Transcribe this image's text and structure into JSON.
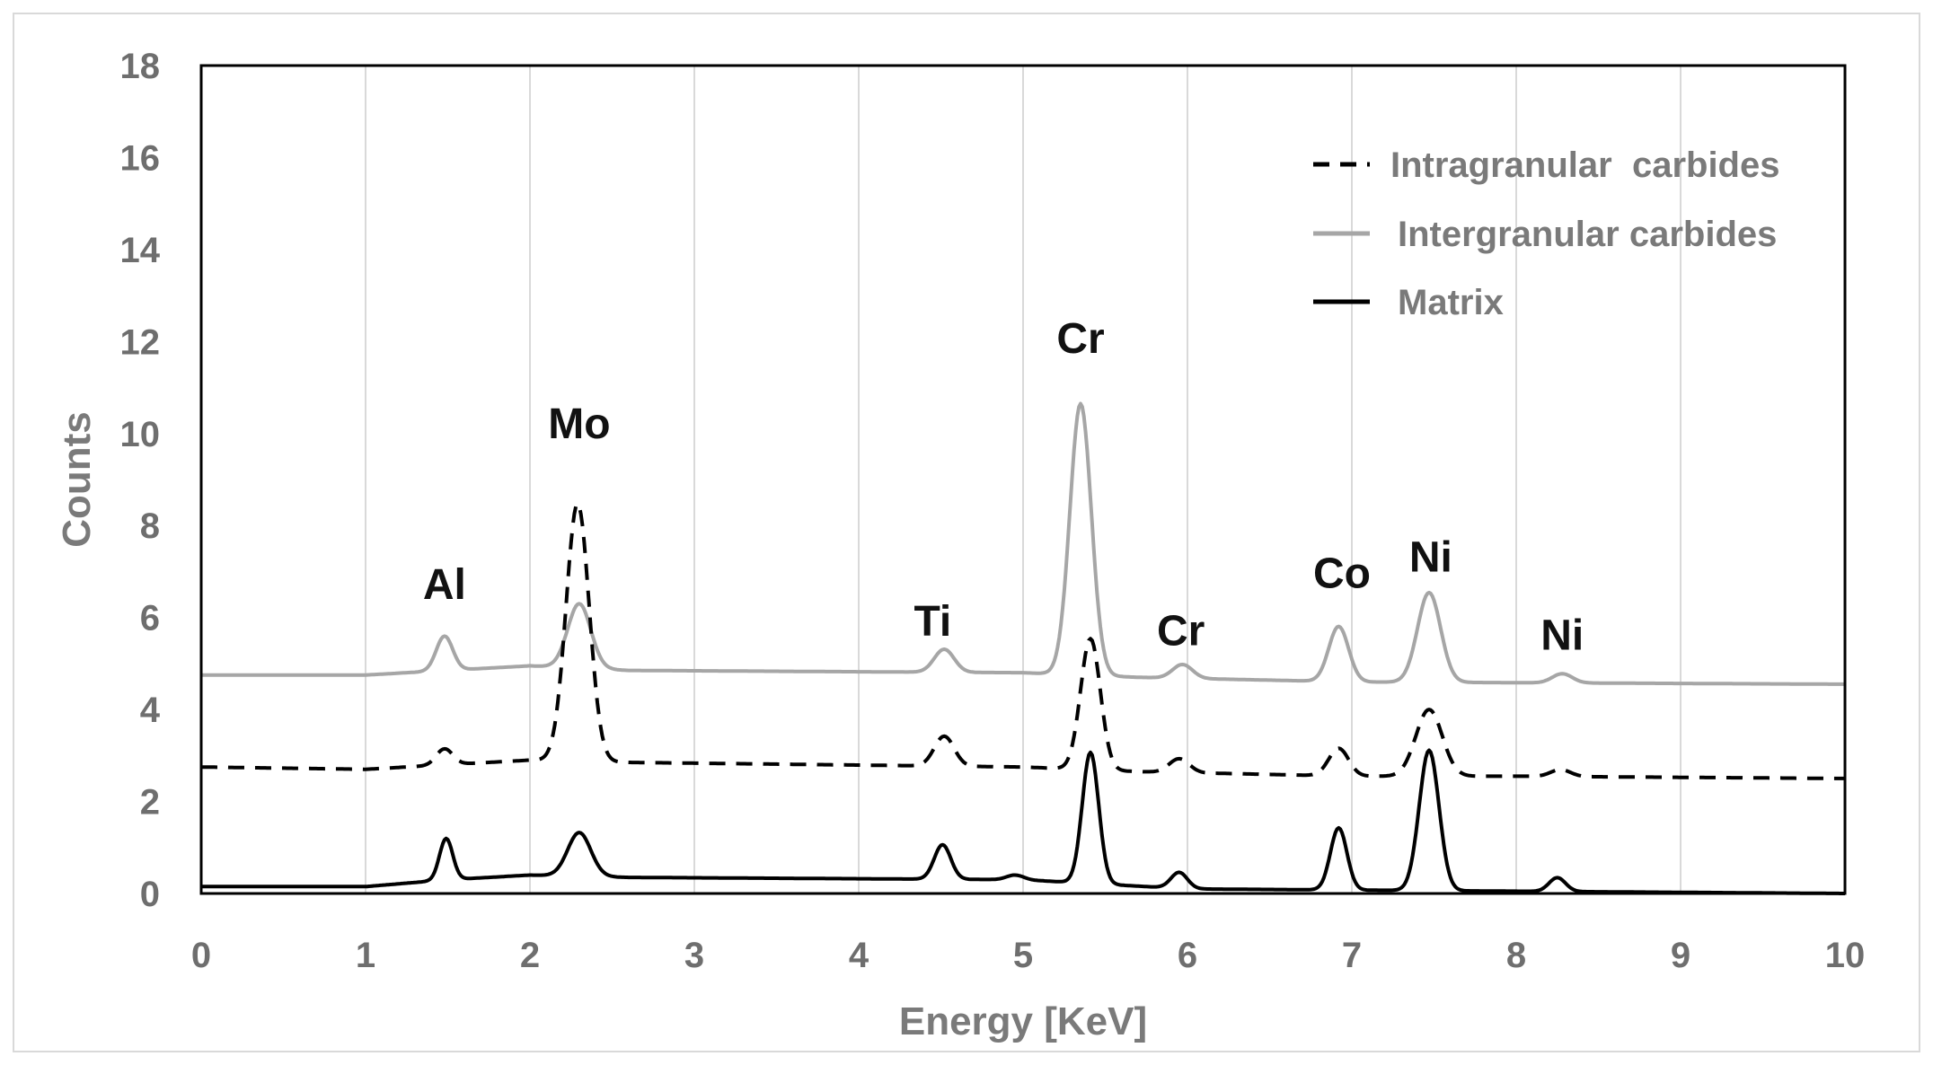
{
  "chart_data": {
    "type": "line",
    "title": "",
    "xlabel": "Energy [KeV]",
    "ylabel": "Counts",
    "xlim": [
      0,
      10
    ],
    "ylim": [
      0,
      18
    ],
    "xticks": [
      "0",
      "1",
      "2",
      "3",
      "4",
      "5",
      "6",
      "7",
      "8",
      "9",
      "10"
    ],
    "yticks": [
      "0",
      "2",
      "4",
      "6",
      "8",
      "10",
      "12",
      "14",
      "16",
      "18"
    ],
    "grid": "vertical",
    "legend_position": "top-right",
    "series": [
      {
        "name": "Intragranular  carbides",
        "style": "dashed",
        "color": "#000000",
        "baseline": [
          [
            0,
            2.75
          ],
          [
            1.0,
            2.7
          ],
          [
            2.0,
            2.9
          ],
          [
            2.6,
            2.85
          ],
          [
            5.0,
            2.75
          ],
          [
            5.7,
            2.65
          ],
          [
            7.0,
            2.55
          ],
          [
            8.0,
            2.55
          ],
          [
            10.0,
            2.5
          ]
        ],
        "peaks": [
          [
            1.48,
            0.35,
            0.05
          ],
          [
            2.29,
            5.6,
            0.07
          ],
          [
            4.52,
            0.65,
            0.06
          ],
          [
            5.41,
            2.85,
            0.06
          ],
          [
            5.95,
            0.3,
            0.06
          ],
          [
            6.92,
            0.6,
            0.06
          ],
          [
            7.47,
            1.45,
            0.08
          ],
          [
            8.27,
            0.15,
            0.06
          ]
        ]
      },
      {
        "name": "Intergranular carbides",
        "style": "solid",
        "color": "#a6a6a6",
        "baseline": [
          [
            0,
            4.75
          ],
          [
            1.0,
            4.75
          ],
          [
            2.0,
            4.95
          ],
          [
            2.6,
            4.85
          ],
          [
            5.0,
            4.8
          ],
          [
            5.7,
            4.7
          ],
          [
            7.0,
            4.6
          ],
          [
            10.0,
            4.55
          ]
        ],
        "peaks": [
          [
            1.48,
            0.75,
            0.05
          ],
          [
            2.3,
            1.4,
            0.07
          ],
          [
            4.52,
            0.5,
            0.06
          ],
          [
            5.35,
            5.9,
            0.065
          ],
          [
            5.97,
            0.3,
            0.06
          ],
          [
            6.92,
            1.2,
            0.06
          ],
          [
            7.47,
            1.95,
            0.07
          ],
          [
            8.28,
            0.2,
            0.06
          ]
        ]
      },
      {
        "name": "Matrix",
        "style": "solid",
        "color": "#000000",
        "baseline": [
          [
            0,
            0.15
          ],
          [
            1.0,
            0.15
          ],
          [
            1.5,
            0.3
          ],
          [
            2.0,
            0.4
          ],
          [
            2.6,
            0.35
          ],
          [
            5.0,
            0.3
          ],
          [
            6.0,
            0.1
          ],
          [
            10.0,
            0.0
          ]
        ],
        "peaks": [
          [
            1.49,
            0.9,
            0.04
          ],
          [
            2.3,
            0.95,
            0.07
          ],
          [
            4.51,
            0.75,
            0.05
          ],
          [
            4.95,
            0.1,
            0.05
          ],
          [
            5.41,
            2.85,
            0.05
          ],
          [
            5.95,
            0.35,
            0.05
          ],
          [
            6.92,
            1.35,
            0.05
          ],
          [
            7.47,
            3.05,
            0.06
          ],
          [
            8.25,
            0.3,
            0.05
          ]
        ]
      }
    ],
    "annotations": [
      {
        "text": "Al",
        "x": 1.48,
        "y": 6.4
      },
      {
        "text": "Mo",
        "x": 2.3,
        "y": 9.9
      },
      {
        "text": "Ti",
        "x": 4.45,
        "y": 5.6
      },
      {
        "text": "Cr",
        "x": 5.35,
        "y": 11.75
      },
      {
        "text": "Cr",
        "x": 5.96,
        "y": 5.4
      },
      {
        "text": "Co",
        "x": 6.94,
        "y": 6.65
      },
      {
        "text": "Ni",
        "x": 7.48,
        "y": 7.0
      },
      {
        "text": "Ni",
        "x": 8.28,
        "y": 5.3
      }
    ]
  }
}
